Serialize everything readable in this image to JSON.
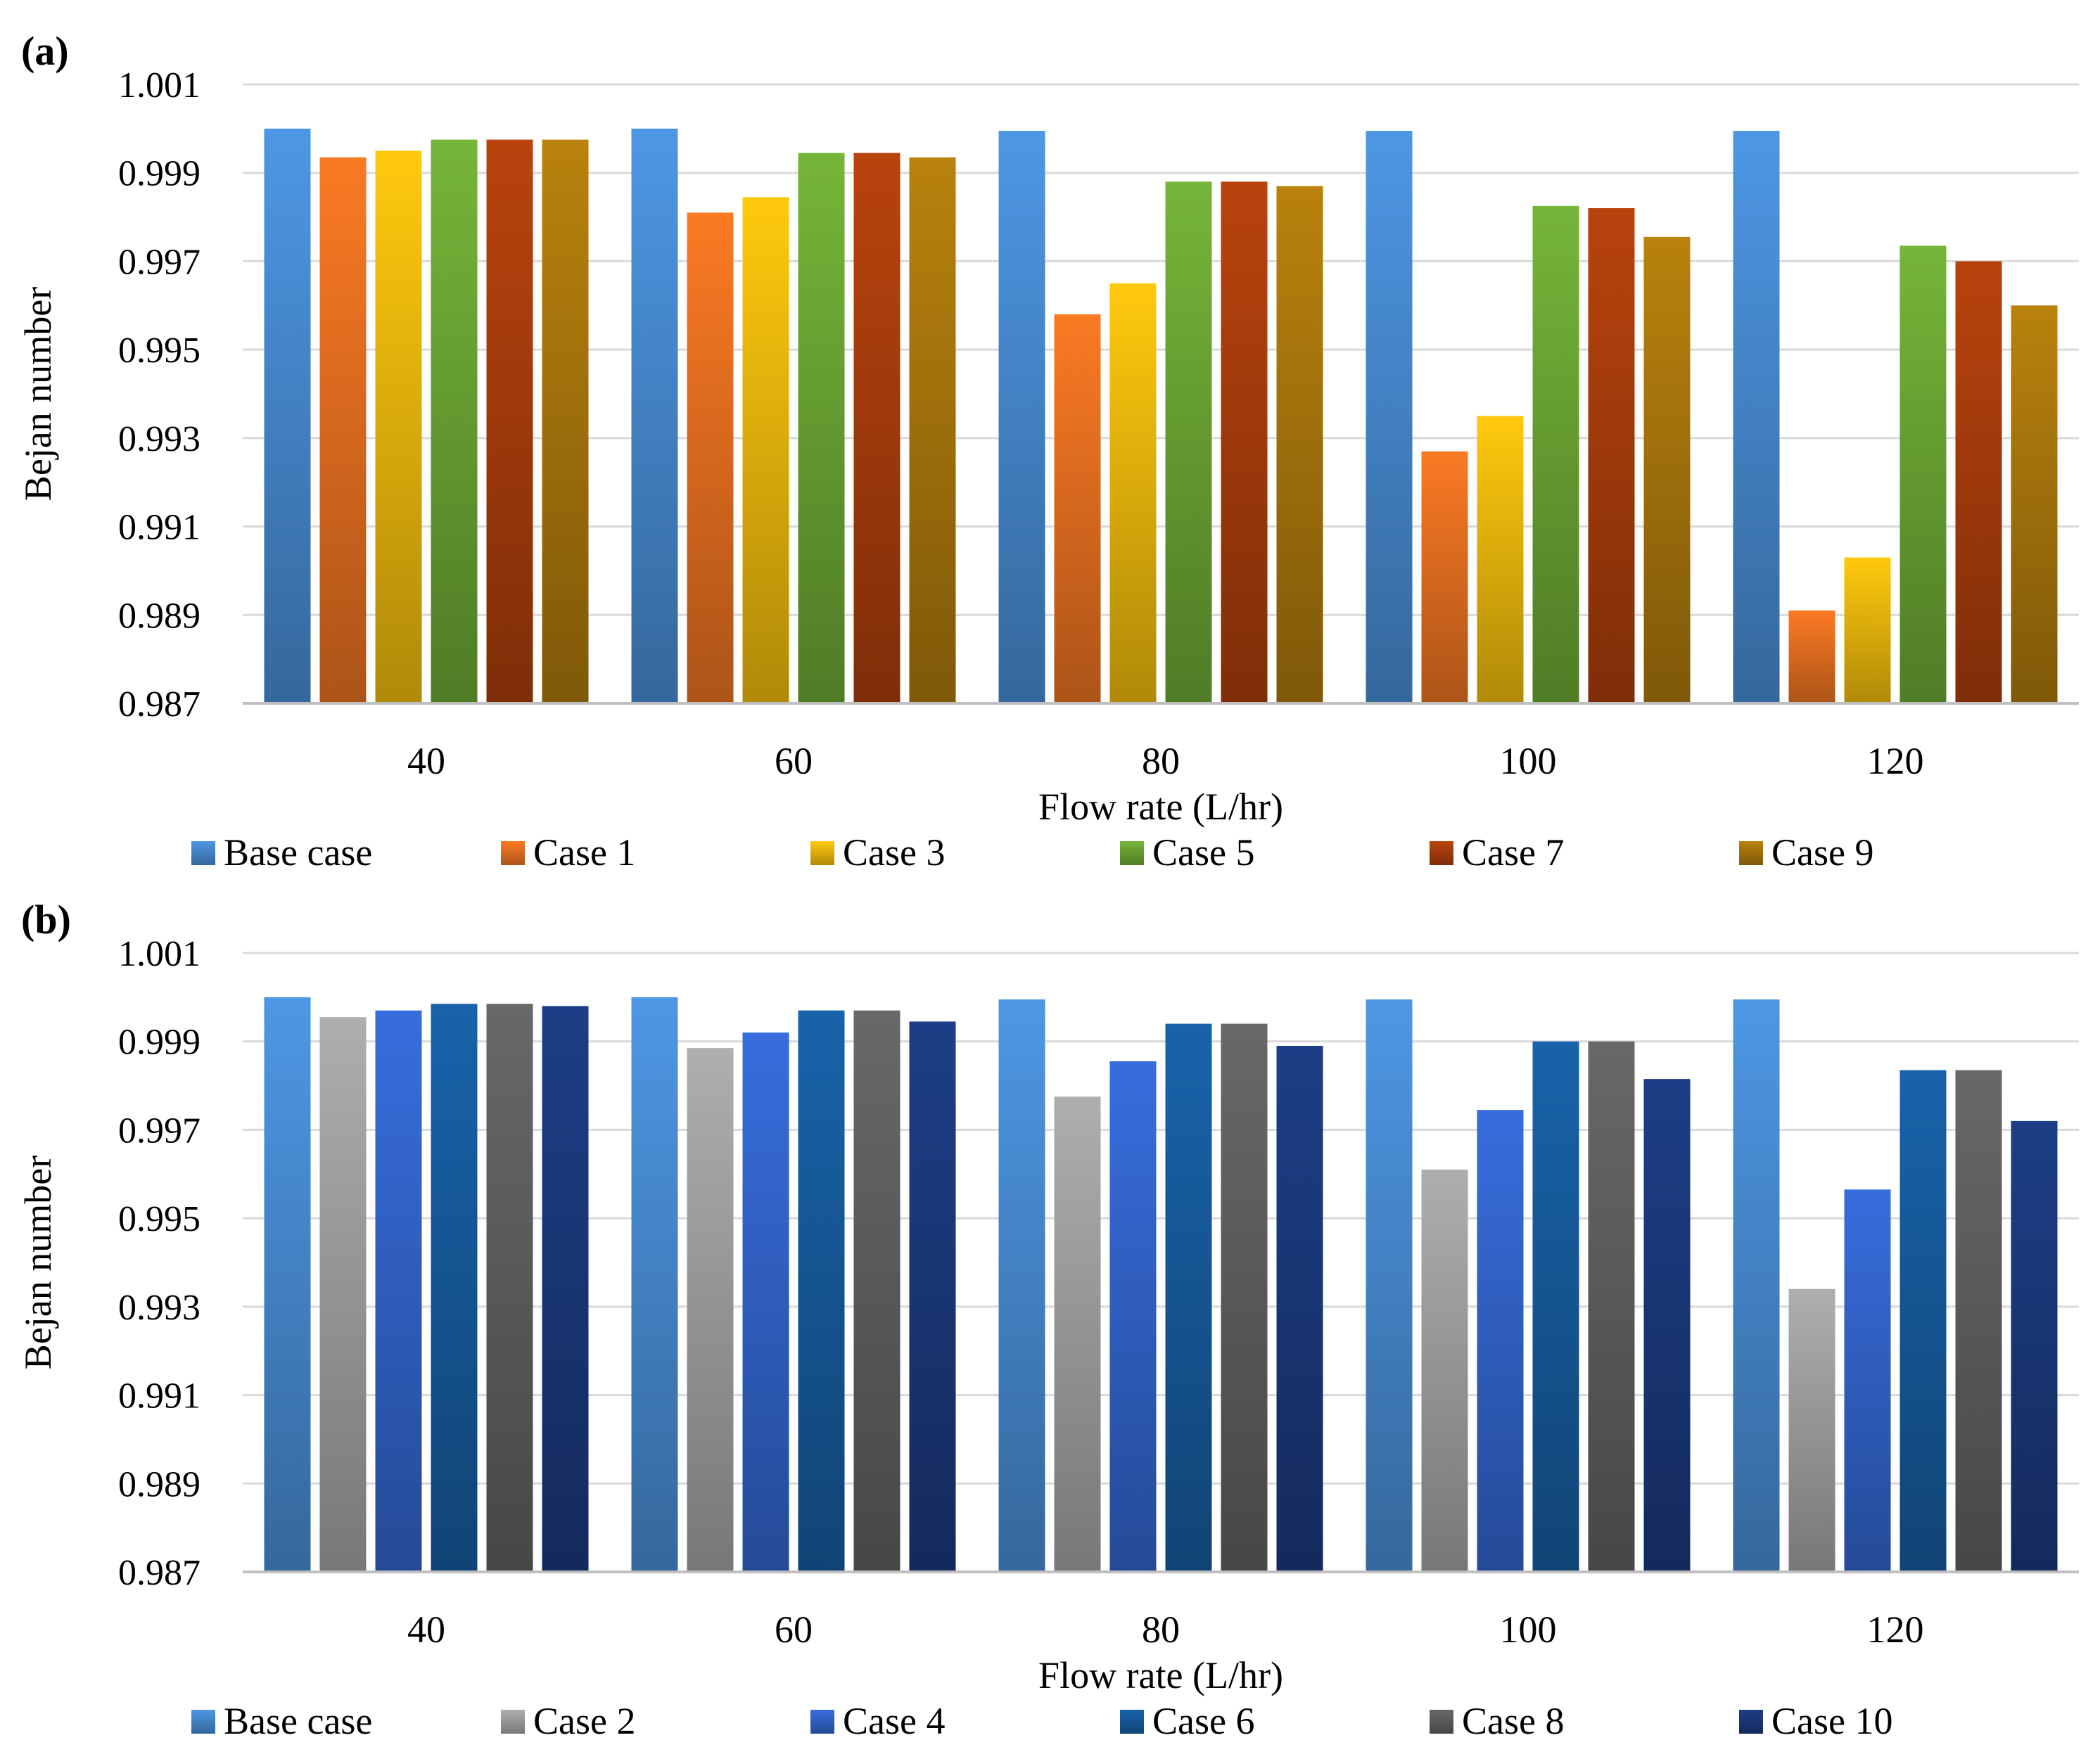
{
  "chart_data": [
    {
      "type": "bar",
      "panel_label": "(a)",
      "xlabel": "Flow rate (L/hr)",
      "ylabel": "Bejan number",
      "ylim": [
        0.987,
        1.001
      ],
      "yticks": [
        "0.987",
        "0.989",
        "0.991",
        "0.993",
        "0.995",
        "0.997",
        "0.999",
        "1.001"
      ],
      "grid": true,
      "legend_position": "bottom",
      "categories": [
        "40",
        "60",
        "80",
        "100",
        "120"
      ],
      "series": [
        {
          "name": "Base case",
          "color": "#4a90d9",
          "values": [
            1.0,
            1.0,
            0.99995,
            0.99995,
            0.99995
          ]
        },
        {
          "name": "Case 1",
          "color": "#ef7422",
          "values": [
            0.99935,
            0.9981,
            0.9958,
            0.9927,
            0.9891
          ]
        },
        {
          "name": "Case 3",
          "color": "#f5bf0c",
          "values": [
            0.9995,
            0.99845,
            0.9965,
            0.9935,
            0.9903
          ]
        },
        {
          "name": "Case 5",
          "color": "#6fac35",
          "values": [
            0.99975,
            0.99945,
            0.9988,
            0.99825,
            0.99735
          ]
        },
        {
          "name": "Case 7",
          "color": "#b0400c",
          "values": [
            0.99975,
            0.99945,
            0.9988,
            0.9982,
            0.997
          ]
        },
        {
          "name": "Case 9",
          "color": "#b07c0c",
          "values": [
            0.99975,
            0.99935,
            0.9987,
            0.99755,
            0.996
          ]
        }
      ]
    },
    {
      "type": "bar",
      "panel_label": "(b)",
      "xlabel": "Flow rate (L/hr)",
      "ylabel": "Bejan number",
      "ylim": [
        0.987,
        1.001
      ],
      "yticks": [
        "0.987",
        "0.989",
        "0.991",
        "0.993",
        "0.995",
        "0.997",
        "0.999",
        "1.001"
      ],
      "grid": true,
      "legend_position": "bottom",
      "categories": [
        "40",
        "60",
        "80",
        "100",
        "120"
      ],
      "series": [
        {
          "name": "Base case",
          "color": "#4a90d9",
          "values": [
            1.0,
            1.0,
            0.99995,
            0.99995,
            0.99995
          ]
        },
        {
          "name": "Case 2",
          "color": "#a6a6a6",
          "values": [
            0.99955,
            0.99885,
            0.99775,
            0.9961,
            0.9934
          ]
        },
        {
          "name": "Case 4",
          "color": "#3468d2",
          "values": [
            0.9997,
            0.9992,
            0.99855,
            0.99745,
            0.99565
          ]
        },
        {
          "name": "Case 6",
          "color": "#175ea2",
          "values": [
            0.99985,
            0.9997,
            0.9994,
            0.999,
            0.99835
          ]
        },
        {
          "name": "Case 8",
          "color": "#636363",
          "values": [
            0.99985,
            0.9997,
            0.9994,
            0.999,
            0.99835
          ]
        },
        {
          "name": "Case 10",
          "color": "#1c3b80",
          "values": [
            0.9998,
            0.99945,
            0.9989,
            0.99815,
            0.9972
          ]
        }
      ]
    }
  ]
}
